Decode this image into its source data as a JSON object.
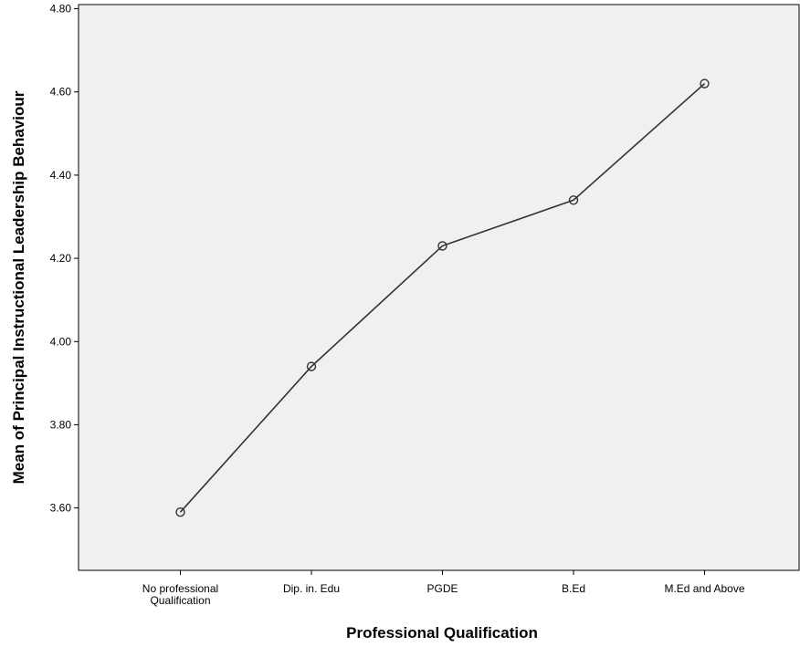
{
  "chart_data": {
    "type": "line",
    "categories": [
      [
        "No professional",
        "Qualification"
      ],
      [
        "Dip. in. Edu"
      ],
      [
        "PGDE"
      ],
      [
        "B.Ed"
      ],
      [
        "M.Ed and Above"
      ]
    ],
    "values": [
      3.59,
      3.94,
      4.23,
      4.34,
      4.62
    ],
    "xlabel": "Professional Qualification",
    "ylabel": "Mean of Principal Instructional Leadership Behaviour",
    "ylim": [
      3.45,
      4.81
    ],
    "yticks": [
      "3.60",
      "3.80",
      "4.00",
      "4.20",
      "4.40",
      "4.60",
      "4.80"
    ],
    "yticks_values": [
      3.6,
      3.8,
      4.0,
      4.2,
      4.4,
      4.6,
      4.8
    ],
    "grid": false,
    "legend": "none",
    "colors": {
      "plot_background": "#f0f0f0",
      "line": "#333333",
      "marker": "#333333"
    }
  }
}
